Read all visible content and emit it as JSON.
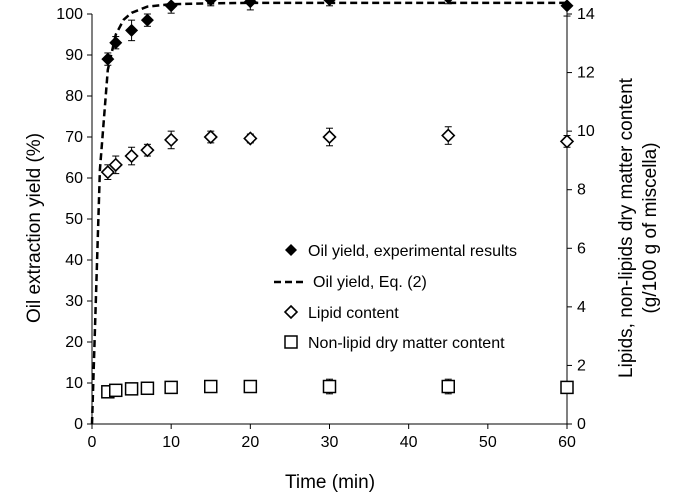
{
  "chart_data": {
    "type": "scatter",
    "xlabel": "Time (min)",
    "ylabel": "Oil extraction yield (%)",
    "y2label": "Lipids, non-lipids dry matter content",
    "y2label_line2": "(g/100 g of miscella)",
    "xlim": [
      0,
      60
    ],
    "ylim": [
      0,
      100
    ],
    "y2lim": [
      0,
      14
    ],
    "xticks": [
      0,
      10,
      20,
      30,
      40,
      50,
      60
    ],
    "yticks": [
      0,
      10,
      20,
      30,
      40,
      50,
      60,
      70,
      80,
      90,
      100
    ],
    "y2ticks": [
      0,
      2,
      4,
      6,
      8,
      10,
      12,
      14
    ],
    "legend_position": "center-right",
    "series": [
      {
        "name": "Oil yield, experimental results",
        "axis": "left",
        "marker": "filled-diamond",
        "x": [
          2,
          3,
          5,
          7,
          10,
          15,
          20,
          30,
          45,
          60
        ],
        "y": [
          89,
          93,
          96,
          98.5,
          102,
          103.5,
          103,
          103.5,
          104,
          102
        ],
        "err": [
          1.5,
          1.5,
          2.5,
          1.5,
          1.8,
          1.5,
          2,
          1.5,
          1.5,
          2.5
        ]
      },
      {
        "name": "Oil yield, Eq. (2)",
        "axis": "left",
        "marker": "dashed-line",
        "x": [
          0,
          1,
          2,
          3,
          4,
          5,
          7,
          10,
          15,
          20,
          30,
          45,
          60
        ],
        "y": [
          0,
          62,
          86.4,
          95,
          98.6,
          100.3,
          101.8,
          102.4,
          102.6,
          102.7,
          102.7,
          102.7,
          102.7
        ]
      },
      {
        "name": "Lipid content",
        "axis": "right",
        "marker": "open-diamond",
        "x": [
          2,
          3,
          5,
          7,
          10,
          15,
          20,
          30,
          45,
          60
        ],
        "y": [
          8.6,
          8.85,
          9.15,
          9.35,
          9.7,
          9.8,
          9.75,
          9.8,
          9.85,
          9.65
        ],
        "err": [
          0.25,
          0.3,
          0.3,
          0.2,
          0.3,
          0.2,
          0.15,
          0.3,
          0.3,
          0.2
        ]
      },
      {
        "name": "Non-lipid dry matter content",
        "axis": "right",
        "marker": "open-square",
        "x": [
          2,
          3,
          5,
          7,
          10,
          15,
          20,
          30,
          45,
          60
        ],
        "y": [
          1.1,
          1.15,
          1.2,
          1.22,
          1.25,
          1.28,
          1.28,
          1.28,
          1.28,
          1.25
        ],
        "err": [
          0.15,
          0.15,
          0.2,
          0.2,
          0.2,
          0.15,
          0.15,
          0.25,
          0.25,
          0.2
        ]
      }
    ]
  }
}
